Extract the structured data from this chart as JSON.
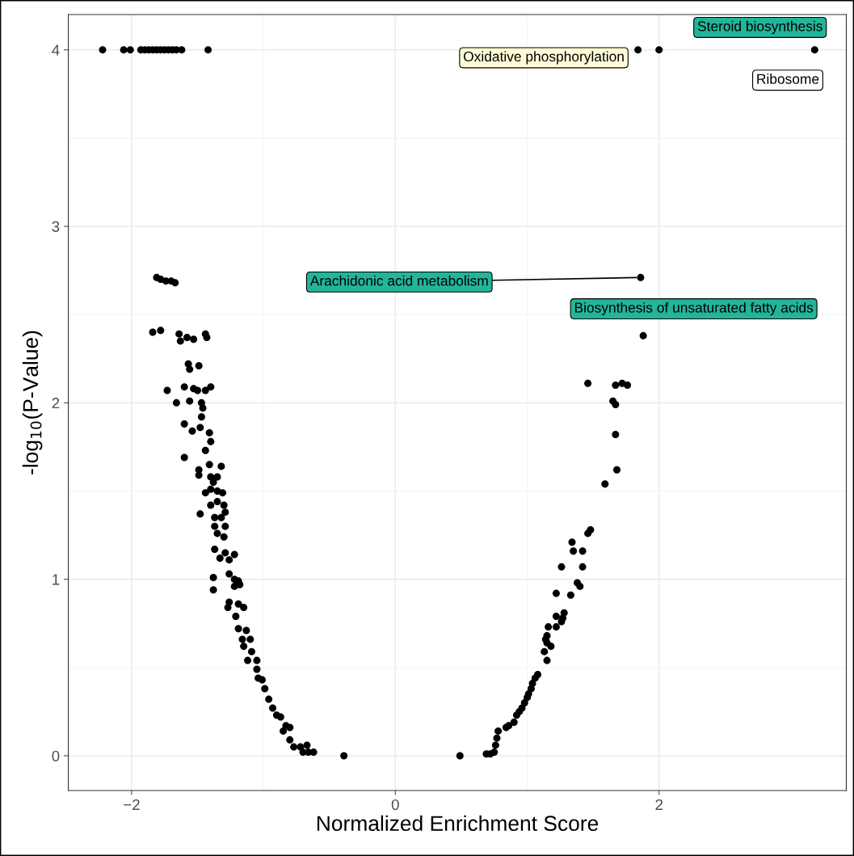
{
  "chart_data": {
    "type": "scatter",
    "xlabel": "Normalized Enrichment Score",
    "ylabel": "-log$_{10}$(P-Value)",
    "xlim": [
      -2.48,
      3.42
    ],
    "ylim": [
      -0.197,
      4.2
    ],
    "xticks": [
      {
        "value": -2,
        "label": "−2"
      },
      0,
      2
    ],
    "yticks": [
      0,
      1,
      2,
      3,
      4
    ],
    "grid": true,
    "marker": "circle",
    "series": [
      {
        "color": "#000000",
        "x": [
          -2.22,
          -2.06,
          -2.01,
          -1.93,
          -1.9,
          -1.87,
          -1.84,
          -1.81,
          -1.78,
          -1.75,
          -1.72,
          -1.69,
          -1.66,
          -1.62,
          -1.42,
          1.84,
          2.0,
          3.18,
          1.86,
          1.88,
          -1.81,
          -1.78,
          -1.74,
          -1.7,
          -1.67,
          -1.84,
          -1.78,
          -1.64,
          -1.63,
          -1.58,
          -1.53,
          -1.44,
          -1.43,
          -1.57,
          -1.56,
          -1.49,
          -1.73,
          -1.6,
          -1.53,
          -1.5,
          -1.44,
          -1.4,
          -1.66,
          -1.56,
          -1.47,
          -1.46,
          -1.47,
          -1.6,
          -1.54,
          -1.48,
          -1.41,
          -1.4,
          -1.6,
          -1.44,
          -1.41,
          -1.32,
          -1.49,
          -1.49,
          -1.4,
          -1.35,
          -1.38,
          -1.44,
          -1.4,
          -1.35,
          -1.31,
          -1.48,
          -1.4,
          -1.35,
          -1.3,
          -1.37,
          -1.32,
          -1.29,
          -1.37,
          -1.29,
          -1.35,
          -1.3,
          -1.37,
          -1.29,
          -1.22,
          -1.33,
          -1.26,
          -1.38,
          -1.26,
          -1.22,
          -1.19,
          -1.18,
          -1.38,
          -1.22,
          -1.26,
          -1.27,
          -1.19,
          -1.21,
          -1.15,
          -1.19,
          -1.13,
          -1.16,
          -1.1,
          -1.15,
          -1.09,
          -1.12,
          -1.05,
          -1.05,
          -1.04,
          -1.01,
          -0.99,
          -0.96,
          -0.93,
          -0.9,
          -0.87,
          -0.83,
          -0.85,
          -0.8,
          -0.8,
          -0.77,
          -0.72,
          -0.67,
          -0.66,
          -0.7,
          -0.62,
          -0.39,
          0.49,
          0.69,
          0.72,
          0.75,
          0.76,
          0.77,
          0.78,
          0.84,
          0.86,
          0.9,
          0.92,
          0.94,
          0.96,
          0.98,
          1.0,
          1.01,
          1.03,
          1.04,
          1.06,
          1.08,
          1.15,
          1.13,
          1.18,
          1.15,
          1.14,
          1.15,
          1.16,
          1.22,
          1.26,
          1.27,
          1.22,
          1.28,
          1.22,
          1.33,
          1.38,
          1.4,
          1.42,
          1.26,
          1.35,
          1.42,
          1.34,
          1.46,
          1.48,
          1.59,
          1.68,
          1.67,
          1.65,
          1.67,
          1.46,
          1.67,
          1.72,
          1.76
        ],
        "values": [
          4,
          4,
          4,
          4,
          4,
          4,
          4,
          4,
          4,
          4,
          4,
          4,
          4,
          4,
          4,
          4,
          4,
          4,
          2.71,
          2.38,
          2.71,
          2.7,
          2.69,
          2.69,
          2.68,
          2.4,
          2.41,
          2.39,
          2.35,
          2.37,
          2.36,
          2.39,
          2.37,
          2.22,
          2.19,
          2.21,
          2.07,
          2.09,
          2.08,
          2.07,
          2.07,
          2.09,
          2.0,
          2.01,
          2.0,
          1.97,
          1.92,
          1.88,
          1.84,
          1.86,
          1.83,
          1.78,
          1.69,
          1.73,
          1.65,
          1.64,
          1.62,
          1.59,
          1.58,
          1.58,
          1.55,
          1.49,
          1.51,
          1.5,
          1.49,
          1.37,
          1.42,
          1.44,
          1.42,
          1.35,
          1.35,
          1.38,
          1.3,
          1.3,
          1.26,
          1.24,
          1.17,
          1.15,
          1.14,
          1.12,
          1.11,
          1.01,
          1.03,
          1.0,
          0.99,
          0.97,
          0.94,
          0.96,
          0.87,
          0.84,
          0.86,
          0.79,
          0.84,
          0.72,
          0.71,
          0.66,
          0.66,
          0.62,
          0.59,
          0.54,
          0.54,
          0.49,
          0.44,
          0.43,
          0.38,
          0.32,
          0.27,
          0.23,
          0.22,
          0.17,
          0.14,
          0.16,
          0.09,
          0.05,
          0.05,
          0.06,
          0.02,
          0.02,
          0.02,
          0.0,
          0.0,
          0.01,
          0.01,
          0.02,
          0.06,
          0.1,
          0.14,
          0.16,
          0.17,
          0.19,
          0.23,
          0.25,
          0.27,
          0.3,
          0.33,
          0.35,
          0.38,
          0.41,
          0.44,
          0.46,
          0.54,
          0.59,
          0.62,
          0.64,
          0.66,
          0.68,
          0.73,
          0.73,
          0.76,
          0.78,
          0.79,
          0.81,
          0.92,
          0.91,
          0.98,
          0.96,
          1.07,
          1.07,
          1.16,
          1.16,
          1.21,
          1.26,
          1.28,
          1.54,
          1.62,
          1.82,
          2.01,
          1.99,
          2.11,
          2.1,
          2.11,
          2.1
        ]
      }
    ],
    "annotations": [
      {
        "text": "Oxidative phosphorylation",
        "x": 1.84,
        "y": 4
      },
      {
        "text": "Steroid biosynthesis",
        "x": 2.0,
        "y": 4
      },
      {
        "text": "Ribosome",
        "x": 3.18,
        "y": 4
      },
      {
        "text": "Arachidonic acid metabolism",
        "x": 1.86,
        "y": 2.71
      },
      {
        "text": "Biosynthesis of unsaturated fatty acids",
        "x": 1.88,
        "y": 2.38
      }
    ]
  }
}
